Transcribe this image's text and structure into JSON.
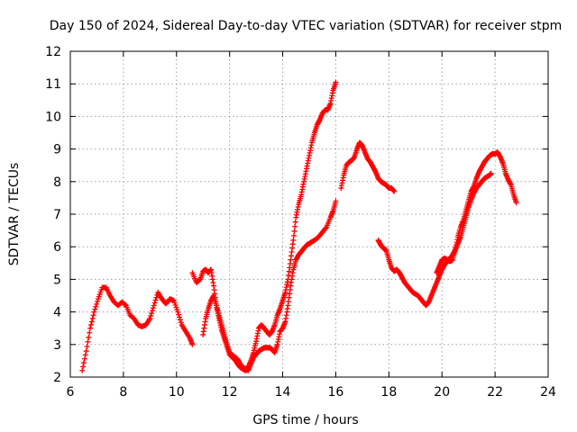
{
  "chart_data": {
    "type": "scatter",
    "title": "Day 150 of 2024, Sidereal Day-to-day VTEC variation (SDTVAR) for receiver stpm",
    "xlabel": "GPS time / hours",
    "ylabel": "SDTVAR / TECUs",
    "xlim": [
      6,
      24
    ],
    "ylim": [
      2,
      12
    ],
    "xticks": [
      6,
      8,
      10,
      12,
      14,
      16,
      18,
      20,
      22,
      24
    ],
    "yticks": [
      2,
      3,
      4,
      5,
      6,
      7,
      8,
      9,
      10,
      11,
      12
    ],
    "grid": true,
    "marker": "+",
    "color": "#ff0000",
    "series": [
      {
        "name": "SDTVAR",
        "segments": [
          [
            [
              6.45,
              2.2
            ],
            [
              6.6,
              2.8
            ],
            [
              6.75,
              3.5
            ],
            [
              6.9,
              4.0
            ],
            [
              7.05,
              4.4
            ],
            [
              7.2,
              4.75
            ],
            [
              7.35,
              4.75
            ],
            [
              7.5,
              4.5
            ],
            [
              7.65,
              4.3
            ],
            [
              7.8,
              4.2
            ],
            [
              7.95,
              4.3
            ],
            [
              8.1,
              4.2
            ],
            [
              8.25,
              3.9
            ],
            [
              8.4,
              3.8
            ],
            [
              8.55,
              3.6
            ],
            [
              8.7,
              3.55
            ],
            [
              8.85,
              3.6
            ],
            [
              9.0,
              3.8
            ],
            [
              9.15,
              4.2
            ],
            [
              9.3,
              4.6
            ],
            [
              9.45,
              4.4
            ],
            [
              9.6,
              4.25
            ],
            [
              9.75,
              4.4
            ],
            [
              9.9,
              4.35
            ],
            [
              10.05,
              4.0
            ],
            [
              10.2,
              3.6
            ],
            [
              10.35,
              3.4
            ],
            [
              10.5,
              3.2
            ],
            [
              10.6,
              3.0
            ]
          ],
          [
            [
              10.6,
              5.2
            ],
            [
              10.75,
              4.9
            ],
            [
              10.9,
              5.0
            ],
            [
              11.0,
              5.25
            ],
            [
              11.1,
              5.3
            ],
            [
              11.2,
              5.2
            ],
            [
              11.3,
              5.3
            ],
            [
              11.4,
              4.8
            ],
            [
              11.5,
              4.2
            ],
            [
              11.6,
              3.9
            ],
            [
              11.7,
              3.6
            ],
            [
              11.8,
              3.3
            ],
            [
              11.9,
              3.0
            ],
            [
              12.0,
              2.75
            ],
            [
              12.15,
              2.65
            ],
            [
              12.3,
              2.55
            ],
            [
              12.4,
              2.4
            ],
            [
              12.5,
              2.3
            ],
            [
              12.6,
              2.25
            ],
            [
              12.7,
              2.2
            ],
            [
              12.8,
              2.4
            ],
            [
              12.9,
              2.6
            ],
            [
              13.0,
              2.7
            ],
            [
              13.1,
              2.8
            ],
            [
              13.2,
              2.85
            ],
            [
              13.3,
              2.9
            ],
            [
              13.4,
              2.9
            ],
            [
              13.5,
              2.9
            ],
            [
              13.6,
              2.85
            ],
            [
              13.7,
              2.75
            ],
            [
              13.8,
              3.0
            ],
            [
              13.9,
              3.4
            ],
            [
              14.0,
              3.5
            ],
            [
              14.1,
              3.7
            ],
            [
              14.2,
              4.2
            ],
            [
              14.3,
              4.8
            ],
            [
              14.4,
              5.3
            ],
            [
              14.5,
              5.6
            ],
            [
              14.6,
              5.75
            ],
            [
              14.7,
              5.85
            ],
            [
              14.8,
              5.95
            ],
            [
              14.9,
              6.05
            ],
            [
              15.0,
              6.1
            ],
            [
              15.1,
              6.15
            ],
            [
              15.2,
              6.2
            ],
            [
              15.35,
              6.3
            ],
            [
              15.5,
              6.45
            ],
            [
              15.65,
              6.6
            ],
            [
              15.8,
              6.9
            ],
            [
              15.9,
              7.1
            ],
            [
              16.0,
              7.4
            ]
          ],
          [
            [
              11.0,
              3.3
            ],
            [
              11.1,
              3.8
            ],
            [
              11.2,
              4.1
            ],
            [
              11.3,
              4.35
            ],
            [
              11.4,
              4.5
            ],
            [
              11.5,
              4.2
            ],
            [
              11.6,
              3.8
            ],
            [
              11.7,
              3.45
            ],
            [
              11.8,
              3.2
            ],
            [
              11.9,
              2.95
            ],
            [
              12.0,
              2.7
            ],
            [
              12.1,
              2.6
            ],
            [
              12.2,
              2.55
            ],
            [
              12.3,
              2.4
            ],
            [
              12.4,
              2.3
            ],
            [
              12.5,
              2.25
            ],
            [
              12.6,
              2.2
            ],
            [
              12.7,
              2.3
            ],
            [
              12.8,
              2.5
            ],
            [
              12.9,
              2.75
            ],
            [
              13.0,
              3.1
            ],
            [
              13.1,
              3.5
            ],
            [
              13.2,
              3.6
            ],
            [
              13.3,
              3.5
            ],
            [
              13.4,
              3.4
            ],
            [
              13.5,
              3.3
            ],
            [
              13.6,
              3.4
            ],
            [
              13.7,
              3.6
            ],
            [
              13.8,
              3.9
            ],
            [
              13.9,
              4.1
            ],
            [
              14.0,
              4.35
            ],
            [
              14.1,
              4.6
            ],
            [
              14.2,
              5.0
            ],
            [
              14.3,
              5.6
            ],
            [
              14.4,
              6.2
            ],
            [
              14.5,
              6.9
            ],
            [
              14.6,
              7.3
            ],
            [
              14.7,
              7.6
            ],
            [
              14.8,
              8.0
            ],
            [
              14.9,
              8.4
            ],
            [
              15.0,
              8.8
            ],
            [
              15.1,
              9.2
            ],
            [
              15.2,
              9.5
            ],
            [
              15.3,
              9.75
            ],
            [
              15.4,
              9.9
            ],
            [
              15.5,
              10.1
            ],
            [
              15.6,
              10.2
            ],
            [
              15.7,
              10.2
            ],
            [
              15.8,
              10.4
            ],
            [
              15.9,
              10.8
            ],
            [
              16.0,
              11.05
            ]
          ],
          [
            [
              16.2,
              7.8
            ],
            [
              16.3,
              8.2
            ],
            [
              16.4,
              8.5
            ],
            [
              16.5,
              8.6
            ],
            [
              16.6,
              8.65
            ],
            [
              16.7,
              8.75
            ],
            [
              16.8,
              9.0
            ],
            [
              16.9,
              9.2
            ],
            [
              17.0,
              9.1
            ],
            [
              17.1,
              8.9
            ],
            [
              17.2,
              8.7
            ],
            [
              17.3,
              8.6
            ],
            [
              17.4,
              8.45
            ],
            [
              17.5,
              8.3
            ],
            [
              17.6,
              8.1
            ],
            [
              17.7,
              8.0
            ],
            [
              17.8,
              7.95
            ],
            [
              17.9,
              7.9
            ],
            [
              18.0,
              7.8
            ],
            [
              18.1,
              7.8
            ],
            [
              18.2,
              7.7
            ]
          ],
          [
            [
              17.6,
              6.2
            ],
            [
              17.7,
              6.05
            ],
            [
              17.8,
              5.95
            ],
            [
              17.9,
              5.9
            ],
            [
              18.0,
              5.6
            ],
            [
              18.1,
              5.35
            ],
            [
              18.2,
              5.25
            ],
            [
              18.3,
              5.3
            ],
            [
              18.4,
              5.2
            ],
            [
              18.5,
              5.05
            ],
            [
              18.6,
              4.9
            ],
            [
              18.7,
              4.8
            ],
            [
              18.8,
              4.7
            ],
            [
              18.9,
              4.6
            ],
            [
              19.0,
              4.55
            ],
            [
              19.1,
              4.5
            ],
            [
              19.2,
              4.4
            ],
            [
              19.3,
              4.3
            ],
            [
              19.4,
              4.2
            ],
            [
              19.5,
              4.3
            ],
            [
              19.6,
              4.5
            ],
            [
              19.7,
              4.7
            ],
            [
              19.8,
              4.9
            ],
            [
              19.9,
              5.1
            ],
            [
              20.0,
              5.3
            ],
            [
              20.1,
              5.45
            ],
            [
              20.2,
              5.55
            ],
            [
              20.3,
              5.65
            ],
            [
              20.4,
              5.75
            ],
            [
              20.5,
              5.9
            ],
            [
              20.6,
              6.1
            ],
            [
              20.7,
              6.3
            ],
            [
              20.8,
              6.6
            ],
            [
              20.9,
              6.9
            ],
            [
              21.0,
              7.2
            ],
            [
              21.1,
              7.45
            ],
            [
              21.2,
              7.65
            ],
            [
              21.3,
              7.8
            ],
            [
              21.4,
              7.9
            ],
            [
              21.5,
              8.0
            ],
            [
              21.6,
              8.1
            ],
            [
              21.7,
              8.15
            ],
            [
              21.8,
              8.2
            ],
            [
              21.85,
              8.25
            ]
          ],
          [
            [
              19.8,
              5.2
            ],
            [
              19.9,
              5.4
            ],
            [
              20.0,
              5.6
            ],
            [
              20.1,
              5.65
            ],
            [
              20.2,
              5.6
            ],
            [
              20.3,
              5.55
            ],
            [
              20.4,
              5.6
            ],
            [
              20.5,
              5.9
            ],
            [
              20.6,
              6.3
            ],
            [
              20.7,
              6.6
            ],
            [
              20.8,
              6.8
            ],
            [
              20.9,
              7.1
            ],
            [
              21.0,
              7.4
            ],
            [
              21.1,
              7.7
            ],
            [
              21.2,
              7.85
            ],
            [
              21.3,
              8.1
            ],
            [
              21.4,
              8.3
            ],
            [
              21.5,
              8.45
            ],
            [
              21.6,
              8.6
            ],
            [
              21.7,
              8.7
            ],
            [
              21.8,
              8.8
            ],
            [
              21.9,
              8.85
            ],
            [
              22.0,
              8.85
            ],
            [
              22.1,
              8.9
            ],
            [
              22.2,
              8.75
            ],
            [
              22.3,
              8.55
            ],
            [
              22.4,
              8.25
            ],
            [
              22.5,
              8.05
            ],
            [
              22.6,
              7.9
            ],
            [
              22.7,
              7.6
            ],
            [
              22.8,
              7.35
            ]
          ]
        ]
      }
    ]
  }
}
